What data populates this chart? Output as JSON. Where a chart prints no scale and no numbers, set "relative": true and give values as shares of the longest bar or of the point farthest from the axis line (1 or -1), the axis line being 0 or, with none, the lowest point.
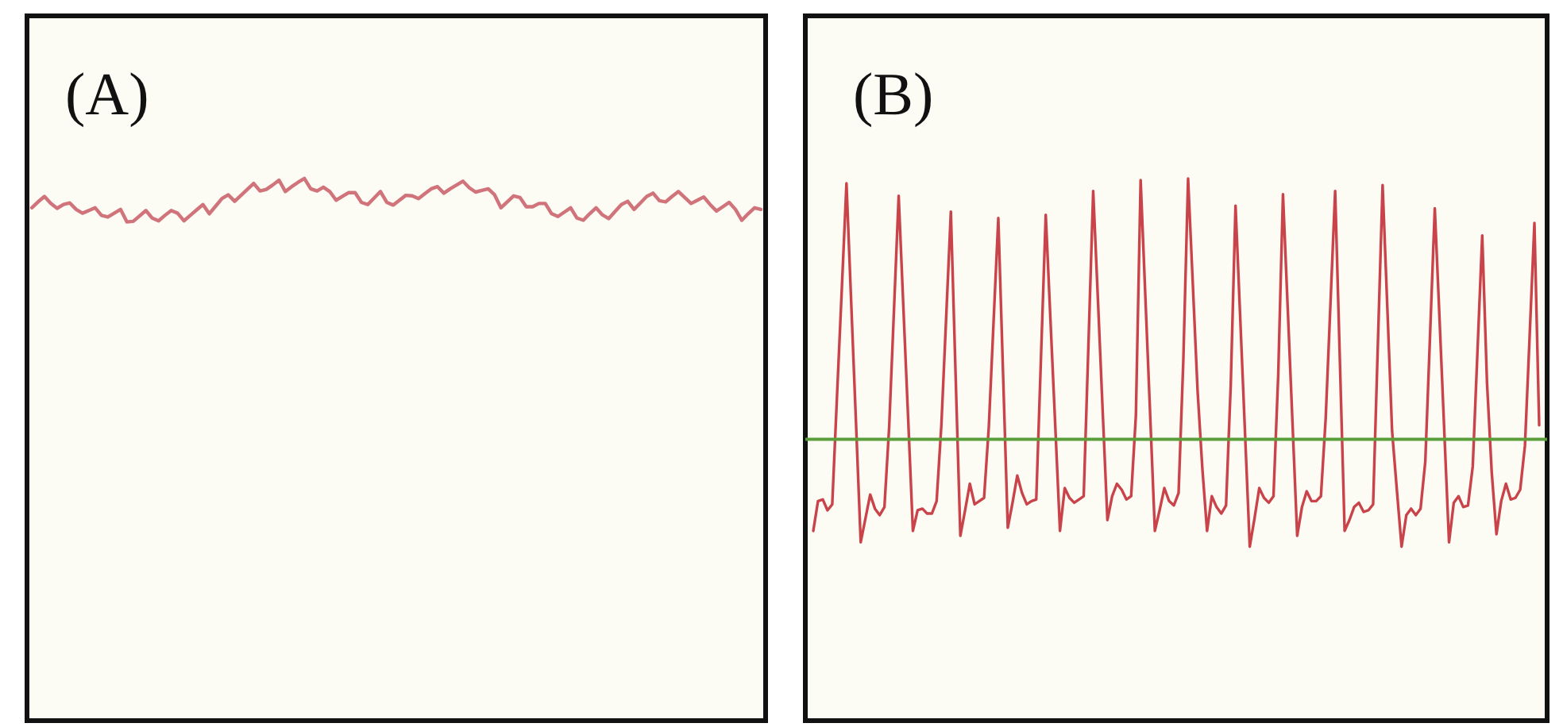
{
  "chart_data": [
    {
      "type": "line",
      "title": "(A)",
      "relative": true,
      "categories": [
        null,
        null,
        null,
        null,
        null,
        null,
        null,
        null,
        null,
        null,
        null,
        null,
        null,
        null,
        null,
        null,
        null,
        null,
        null,
        null,
        null,
        null,
        null,
        null,
        null,
        null,
        null,
        null,
        null,
        null,
        null,
        null,
        null,
        null,
        null,
        null,
        null,
        null,
        null,
        null,
        null,
        null,
        null,
        null,
        null,
        null,
        null,
        null,
        null,
        null,
        null,
        null,
        null,
        null,
        null,
        null,
        null,
        null,
        null,
        null,
        null,
        null,
        null,
        null,
        null,
        null,
        null,
        null,
        null,
        null,
        null,
        null,
        null,
        null,
        null,
        null,
        null,
        null,
        null,
        null,
        null,
        null,
        null,
        null,
        null,
        null,
        null,
        null,
        null,
        null,
        null,
        null,
        null,
        null,
        null,
        null,
        null,
        null,
        null,
        null,
        null,
        null,
        null,
        null,
        null,
        null,
        null,
        null,
        null,
        null,
        null,
        null,
        null,
        null,
        null,
        null
      ],
      "series": [
        {
          "color": "#d0737a",
          "values": [
            0.946,
            0.957,
            0.967,
            0.954,
            0.945,
            0.952,
            0.955,
            0.943,
            0.936,
            0.941,
            0.946,
            0.932,
            0.929,
            0.936,
            0.943,
            0.92,
            0.921,
            0.931,
            0.941,
            0.927,
            0.922,
            0.932,
            0.941,
            0.936,
            0.922,
            0.932,
            0.942,
            0.952,
            0.935,
            0.949,
            0.963,
            0.97,
            0.958,
            0.969,
            0.98,
            0.991,
            0.977,
            0.98,
            0.988,
            0.997,
            0.976,
            0.985,
            0.993,
            1.0,
            0.981,
            0.977,
            0.984,
            0.976,
            0.96,
            0.967,
            0.974,
            0.974,
            0.956,
            0.952,
            0.964,
            0.976,
            0.956,
            0.951,
            0.96,
            0.969,
            0.968,
            0.963,
            0.972,
            0.981,
            0.985,
            0.973,
            0.981,
            0.988,
            0.995,
            0.983,
            0.975,
            0.978,
            0.981,
            0.97,
            0.946,
            0.957,
            0.968,
            0.965,
            0.948,
            0.948,
            0.954,
            0.954,
            0.935,
            0.93,
            0.938,
            0.946,
            0.927,
            0.923,
            0.935,
            0.946,
            0.933,
            0.926,
            0.939,
            0.952,
            0.958,
            0.943,
            0.955,
            0.967,
            0.973,
            0.959,
            0.957,
            0.967,
            0.976,
            0.965,
            0.954,
            0.96,
            0.966,
            0.952,
            0.94,
            0.948,
            0.956,
            0.943,
            0.923,
            0.935,
            0.946,
            0.943
          ]
        }
      ]
    },
    {
      "type": "line",
      "title": "(B)",
      "relative": true,
      "categories": [
        null,
        null,
        null,
        null,
        null,
        null,
        null,
        null,
        null,
        null,
        null,
        null,
        null,
        null,
        null,
        null,
        null,
        null,
        null,
        null,
        null,
        null,
        null,
        null,
        null,
        null,
        null,
        null,
        null,
        null,
        null,
        null,
        null,
        null,
        null,
        null,
        null,
        null,
        null,
        null,
        null,
        null,
        null,
        null,
        null,
        null,
        null,
        null,
        null,
        null,
        null,
        null,
        null,
        null,
        null,
        null,
        null,
        null,
        null,
        null,
        null,
        null,
        null,
        null,
        null,
        null,
        null,
        null,
        null,
        null,
        null,
        null,
        null,
        null,
        null,
        null,
        null,
        null,
        null,
        null,
        null,
        null,
        null,
        null,
        null,
        null,
        null,
        null,
        null,
        null,
        null,
        null,
        null,
        null,
        null,
        null,
        null,
        null,
        null,
        null,
        null,
        null,
        null,
        null,
        null,
        null,
        null,
        null,
        null,
        null,
        null,
        null,
        null,
        null,
        null,
        null,
        null,
        null,
        null,
        null,
        null,
        null,
        null,
        null,
        null,
        null,
        null,
        null,
        null,
        null,
        null,
        null,
        null,
        null,
        null,
        null,
        null,
        null,
        null,
        null,
        null,
        null,
        null,
        null,
        null,
        null,
        null,
        null,
        null,
        null,
        null,
        null,
        null,
        null
      ],
      "series": [
        {
          "color": "#c9444a",
          "values": [
            0.35,
            0.405,
            0.408,
            0.388,
            0.399,
            0.598,
            0.793,
            0.991,
            0.77,
            0.551,
            0.329,
            0.373,
            0.417,
            0.391,
            0.379,
            0.394,
            0.542,
            0.755,
            0.968,
            0.761,
            0.557,
            0.35,
            0.388,
            0.391,
            0.382,
            0.382,
            0.405,
            0.545,
            0.741,
            0.939,
            0.638,
            0.341,
            0.388,
            0.437,
            0.399,
            0.405,
            0.411,
            0.542,
            0.735,
            0.927,
            0.641,
            0.356,
            0.402,
            0.452,
            0.42,
            0.399,
            0.405,
            0.408,
            0.671,
            0.933,
            0.738,
            0.545,
            0.35,
            0.429,
            0.411,
            0.402,
            0.408,
            0.414,
            0.694,
            0.977,
            0.776,
            0.571,
            0.37,
            0.414,
            0.437,
            0.426,
            0.408,
            0.414,
            0.563,
            0.997,
            0.781,
            0.566,
            0.35,
            0.388,
            0.429,
            0.405,
            0.397,
            0.42,
            0.665,
            1.0,
            0.805,
            0.609,
            0.466,
            0.35,
            0.414,
            0.394,
            0.382,
            0.397,
            0.621,
            0.95,
            0.741,
            0.531,
            0.321,
            0.373,
            0.429,
            0.411,
            0.402,
            0.414,
            0.638,
            0.971,
            0.761,
            0.551,
            0.341,
            0.394,
            0.423,
            0.405,
            0.405,
            0.414,
            0.557,
            0.767,
            0.977,
            0.662,
            0.35,
            0.37,
            0.394,
            0.402,
            0.385,
            0.388,
            0.399,
            0.694,
            0.988,
            0.761,
            0.534,
            0.426,
            0.321,
            0.379,
            0.391,
            0.379,
            0.391,
            0.478,
            0.711,
            0.945,
            0.741,
            0.534,
            0.329,
            0.402,
            0.414,
            0.394,
            0.397,
            0.469,
            0.682,
            0.895,
            0.624,
            0.458,
            0.344,
            0.405,
            0.437,
            0.408,
            0.411,
            0.426,
            0.507,
            0.711,
            0.918,
            0.545
          ]
        }
      ],
      "ref_lines": [
        {
          "axis": "y",
          "value": 0.519,
          "color": "#5a9e3a"
        }
      ]
    }
  ]
}
